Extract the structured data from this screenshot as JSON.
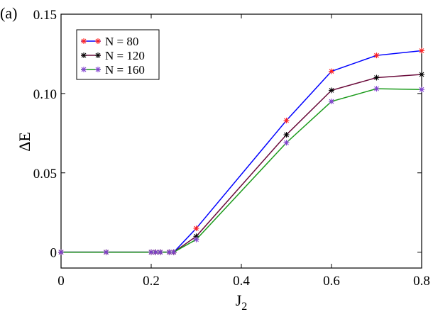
{
  "panel_label": "(a)",
  "chart_data": {
    "type": "line",
    "title": "",
    "xlabel": "J",
    "xlabel_sub": "2",
    "ylabel": "ΔE",
    "xlim": [
      0,
      0.8
    ],
    "ylim": [
      -0.01,
      0.15
    ],
    "xticks": [
      0,
      0.2,
      0.4,
      0.6,
      0.8
    ],
    "xtick_labels": [
      "0",
      "0.2",
      "0.4",
      "0.6",
      "0.8"
    ],
    "yticks": [
      0,
      0.05,
      0.1,
      0.15
    ],
    "ytick_labels": [
      "0",
      "0.05",
      "0.10",
      "0.15"
    ],
    "grid": false,
    "legend_position": "top-left",
    "series": [
      {
        "name": "N = 80",
        "line_color": "#0000ff",
        "marker_color": "#ff2020",
        "x": [
          0,
          0.1,
          0.2,
          0.21,
          0.22,
          0.24,
          0.25,
          0.3,
          0.5,
          0.6,
          0.7,
          0.8
        ],
        "y": [
          0,
          0,
          0,
          0,
          0,
          0,
          0,
          0.015,
          0.083,
          0.114,
          0.124,
          0.127
        ]
      },
      {
        "name": "N = 120",
        "line_color": "#6a0a3a",
        "marker_color": "#000000",
        "x": [
          0,
          0.1,
          0.2,
          0.21,
          0.22,
          0.24,
          0.25,
          0.3,
          0.5,
          0.6,
          0.7,
          0.8
        ],
        "y": [
          0,
          0,
          0,
          0,
          0,
          0,
          0,
          0.01,
          0.074,
          0.102,
          0.11,
          0.112
        ]
      },
      {
        "name": "N = 160",
        "line_color": "#1a9a1a",
        "marker_color": "#8040d0",
        "x": [
          0,
          0.1,
          0.2,
          0.21,
          0.22,
          0.24,
          0.25,
          0.3,
          0.5,
          0.6,
          0.7,
          0.8
        ],
        "y": [
          0,
          0,
          0,
          0,
          0,
          0,
          0,
          0.008,
          0.069,
          0.095,
          0.103,
          0.1025
        ]
      }
    ]
  }
}
